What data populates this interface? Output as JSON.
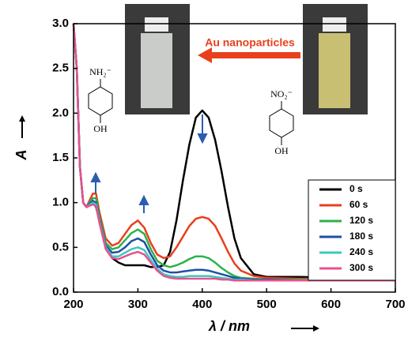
{
  "chart_data": {
    "type": "line",
    "xlabel": "λ / nm",
    "ylabel": "A",
    "annotations": {
      "arrow_label": "Au nanoparticles",
      "amine": "NH₂⁻",
      "amine_oh": "OH",
      "nitro": "NO₂⁻",
      "nitro_oh": "OH"
    },
    "x": [
      200,
      205,
      210,
      215,
      220,
      230,
      235,
      240,
      250,
      260,
      270,
      280,
      290,
      300,
      310,
      320,
      330,
      340,
      350,
      360,
      370,
      380,
      390,
      400,
      410,
      420,
      430,
      440,
      450,
      460,
      480,
      500,
      550,
      600,
      650,
      700
    ],
    "series": [
      {
        "name": "0 s",
        "color": "#000000",
        "values": [
          3.0,
          2.5,
          1.4,
          1.0,
          0.95,
          1.0,
          0.95,
          0.8,
          0.5,
          0.38,
          0.33,
          0.3,
          0.3,
          0.3,
          0.3,
          0.28,
          0.28,
          0.3,
          0.45,
          0.8,
          1.25,
          1.65,
          1.95,
          2.03,
          1.95,
          1.7,
          1.35,
          0.95,
          0.6,
          0.38,
          0.2,
          0.17,
          0.17,
          0.16,
          0.16,
          0.16
        ]
      },
      {
        "name": "60 s",
        "color": "#e8401c",
        "values": [
          3.0,
          2.5,
          1.4,
          1.0,
          0.95,
          1.1,
          1.1,
          0.9,
          0.6,
          0.52,
          0.55,
          0.65,
          0.75,
          0.8,
          0.72,
          0.55,
          0.42,
          0.38,
          0.4,
          0.5,
          0.62,
          0.74,
          0.82,
          0.84,
          0.82,
          0.74,
          0.6,
          0.45,
          0.32,
          0.24,
          0.18,
          0.16,
          0.15,
          0.15,
          0.15,
          0.15
        ]
      },
      {
        "name": "120 s",
        "color": "#2bb24c",
        "values": [
          3.0,
          2.5,
          1.4,
          1.0,
          0.95,
          1.05,
          1.05,
          0.85,
          0.55,
          0.48,
          0.5,
          0.58,
          0.66,
          0.7,
          0.65,
          0.48,
          0.35,
          0.3,
          0.28,
          0.3,
          0.33,
          0.37,
          0.4,
          0.4,
          0.38,
          0.33,
          0.27,
          0.22,
          0.18,
          0.16,
          0.15,
          0.14,
          0.14,
          0.14,
          0.14,
          0.14
        ]
      },
      {
        "name": "180 s",
        "color": "#1f4fa8",
        "values": [
          3.0,
          2.5,
          1.4,
          1.0,
          0.95,
          1.02,
          1.0,
          0.82,
          0.52,
          0.44,
          0.45,
          0.5,
          0.57,
          0.6,
          0.56,
          0.42,
          0.3,
          0.24,
          0.22,
          0.22,
          0.23,
          0.24,
          0.25,
          0.25,
          0.24,
          0.22,
          0.2,
          0.18,
          0.16,
          0.15,
          0.14,
          0.14,
          0.13,
          0.13,
          0.13,
          0.13
        ]
      },
      {
        "name": "240 s",
        "color": "#3ec7c0",
        "values": [
          3.0,
          2.5,
          1.4,
          1.0,
          0.95,
          1.0,
          0.98,
          0.8,
          0.5,
          0.4,
          0.4,
          0.44,
          0.48,
          0.5,
          0.47,
          0.36,
          0.26,
          0.2,
          0.18,
          0.17,
          0.17,
          0.18,
          0.18,
          0.18,
          0.18,
          0.17,
          0.16,
          0.15,
          0.14,
          0.14,
          0.13,
          0.13,
          0.13,
          0.13,
          0.13,
          0.13
        ]
      },
      {
        "name": "300 s",
        "color": "#e8508f",
        "values": [
          3.0,
          2.5,
          1.4,
          1.0,
          0.95,
          0.98,
          0.96,
          0.78,
          0.48,
          0.38,
          0.37,
          0.4,
          0.43,
          0.45,
          0.42,
          0.33,
          0.24,
          0.18,
          0.16,
          0.15,
          0.15,
          0.15,
          0.15,
          0.15,
          0.15,
          0.15,
          0.14,
          0.14,
          0.13,
          0.13,
          0.13,
          0.13,
          0.13,
          0.13,
          0.13,
          0.13
        ]
      }
    ],
    "xlim": [
      200,
      700
    ],
    "ylim": [
      0,
      3
    ],
    "xticks": [
      200,
      300,
      400,
      500,
      600,
      700
    ],
    "yticks": [
      {
        "value": 0,
        "label": "0.0"
      },
      0.5,
      {
        "value": 1,
        "label": "1.0"
      },
      1.5,
      {
        "value": 2,
        "label": "2.0"
      },
      2.5,
      {
        "value": 3,
        "label": "3.0"
      }
    ]
  }
}
